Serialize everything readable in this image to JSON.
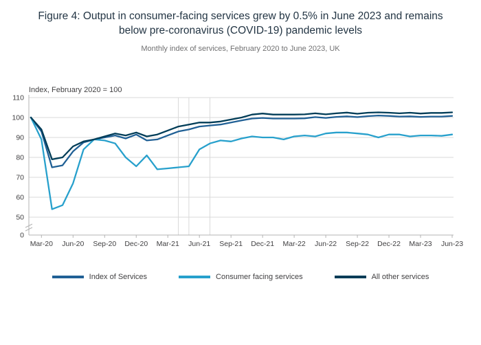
{
  "title": "Figure 4: Output in consumer-facing services grew by 0.5% in June 2023 and remains below pre-coronavirus (COVID-19) pandemic levels",
  "subtitle": "Monthly index of services, February 2020 to June 2023, UK",
  "chart_data": {
    "type": "line",
    "axis_title": "Index, February 2020 = 100",
    "x": [
      "Feb-20",
      "Mar-20",
      "Apr-20",
      "May-20",
      "Jun-20",
      "Jul-20",
      "Aug-20",
      "Sep-20",
      "Oct-20",
      "Nov-20",
      "Dec-20",
      "Jan-21",
      "Feb-21",
      "Mar-21",
      "Apr-21",
      "May-21",
      "Jun-21",
      "Jul-21",
      "Aug-21",
      "Sep-21",
      "Oct-21",
      "Nov-21",
      "Dec-21",
      "Jan-22",
      "Feb-22",
      "Mar-22",
      "Apr-22",
      "May-22",
      "Jun-22",
      "Jul-22",
      "Aug-22",
      "Sep-22",
      "Oct-22",
      "Nov-22",
      "Dec-22",
      "Jan-23",
      "Feb-23",
      "Mar-23",
      "Apr-23",
      "May-23",
      "Jun-23"
    ],
    "x_ticks": [
      "Mar-20",
      "Jun-20",
      "Sep-20",
      "Dec-20",
      "Mar-21",
      "Jun-21",
      "Sep-21",
      "Dec-21",
      "Mar-22",
      "Jun-22",
      "Sep-22",
      "Dec-22",
      "Mar-23",
      "Jun-23"
    ],
    "y_ticks": [
      0,
      50,
      60,
      70,
      80,
      90,
      100,
      110
    ],
    "y_axis_break": true,
    "ylim_upper": [
      50,
      110
    ],
    "grid": "horizontal",
    "legend_position": "bottom",
    "reference_lines_x": [
      "Apr-21",
      "May-21",
      "Jul-21"
    ],
    "series": [
      {
        "name": "Index of Services",
        "color": "#206095",
        "values": [
          100,
          93,
          75,
          76,
          83,
          87.5,
          89,
          90,
          91,
          89.5,
          91.5,
          88.5,
          89,
          91,
          93,
          94,
          95.5,
          96,
          96.5,
          97.5,
          98.5,
          99.5,
          99.8,
          99.5,
          99.5,
          99.5,
          99.6,
          100.2,
          99.8,
          100.3,
          100.6,
          100.2,
          100.7,
          101,
          100.8,
          100.5,
          100.6,
          100.3,
          100.5,
          100.5,
          100.8
        ]
      },
      {
        "name": "Consumer facing services",
        "color": "#27A0CC",
        "values": [
          100,
          89,
          54,
          56,
          67,
          84,
          89,
          88.5,
          87,
          80,
          75.5,
          81,
          74,
          74.5,
          75,
          75.5,
          84,
          87,
          88.5,
          88,
          89.5,
          90.5,
          90,
          90,
          89,
          90.5,
          91,
          90.5,
          92,
          92.5,
          92.5,
          92,
          91.5,
          90,
          91.5,
          91.5,
          90.5,
          91,
          91,
          90.8,
          91.5
        ]
      },
      {
        "name": "All other services",
        "color": "#003C57",
        "values": [
          100,
          94,
          79,
          80,
          85.5,
          88,
          89,
          90.5,
          92,
          91,
          92.5,
          90.5,
          91.5,
          93.5,
          95.5,
          96.5,
          97.5,
          97.5,
          98,
          99,
          100,
          101.5,
          102,
          101.5,
          101.5,
          101.5,
          101.6,
          102.1,
          101.6,
          102.1,
          102.5,
          101.9,
          102.4,
          102.6,
          102.4,
          102.1,
          102.4,
          102,
          102.3,
          102.3,
          102.6
        ]
      }
    ]
  }
}
